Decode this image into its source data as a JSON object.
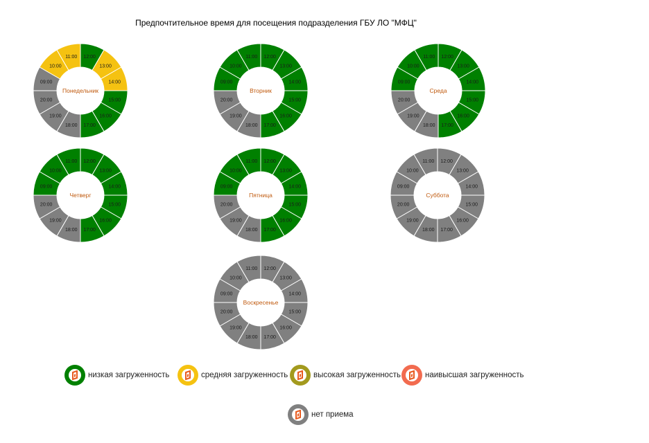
{
  "title": "Предпочтительное время для посещения подразделения ГБУ ЛО \"МФЦ\"",
  "colors": {
    "low": "#008000",
    "medium": "#F5C211",
    "high": "#A39A1E",
    "highest": "#F26B4F",
    "closed": "#808080",
    "day_label": "#C05A0E"
  },
  "chart_data": [
    {
      "type": "donut",
      "day": "Понедельник",
      "hours": [
        "12:00",
        "13:00",
        "14:00",
        "15:00",
        "16:00",
        "17:00",
        "18:00",
        "19:00",
        "20:00",
        "09:00",
        "10:00",
        "11:00"
      ],
      "status": [
        "low",
        "medium",
        "medium",
        "low",
        "low",
        "low",
        "closed",
        "closed",
        "closed",
        "closed",
        "medium",
        "medium"
      ]
    },
    {
      "type": "donut",
      "day": "Вторник",
      "hours": [
        "12:00",
        "13:00",
        "14:00",
        "15:00",
        "16:00",
        "17:00",
        "18:00",
        "19:00",
        "20:00",
        "09:00",
        "10:00",
        "11:00"
      ],
      "status": [
        "low",
        "low",
        "low",
        "low",
        "low",
        "low",
        "closed",
        "closed",
        "closed",
        "low",
        "low",
        "low"
      ]
    },
    {
      "type": "donut",
      "day": "Среда",
      "hours": [
        "12:00",
        "13:00",
        "14:00",
        "15:00",
        "16:00",
        "17:00",
        "18:00",
        "19:00",
        "20:00",
        "09:00",
        "10:00",
        "11:00"
      ],
      "status": [
        "low",
        "low",
        "low",
        "low",
        "low",
        "low",
        "closed",
        "closed",
        "closed",
        "low",
        "low",
        "low"
      ]
    },
    {
      "type": "donut",
      "day": "Четверг",
      "hours": [
        "12:00",
        "13:00",
        "14:00",
        "15:00",
        "16:00",
        "17:00",
        "18:00",
        "19:00",
        "20:00",
        "09:00",
        "10:00",
        "11:00"
      ],
      "status": [
        "low",
        "low",
        "low",
        "low",
        "low",
        "low",
        "closed",
        "closed",
        "closed",
        "low",
        "low",
        "low"
      ]
    },
    {
      "type": "donut",
      "day": "Пятница",
      "hours": [
        "12:00",
        "13:00",
        "14:00",
        "15:00",
        "16:00",
        "17:00",
        "18:00",
        "19:00",
        "20:00",
        "09:00",
        "10:00",
        "11:00"
      ],
      "status": [
        "low",
        "low",
        "low",
        "low",
        "low",
        "low",
        "closed",
        "closed",
        "closed",
        "low",
        "low",
        "low"
      ]
    },
    {
      "type": "donut",
      "day": "Суббота",
      "hours": [
        "12:00",
        "13:00",
        "14:00",
        "15:00",
        "16:00",
        "17:00",
        "18:00",
        "19:00",
        "20:00",
        "09:00",
        "10:00",
        "11:00"
      ],
      "status": [
        "closed",
        "closed",
        "closed",
        "closed",
        "closed",
        "closed",
        "closed",
        "closed",
        "closed",
        "closed",
        "closed",
        "closed"
      ]
    },
    {
      "type": "donut",
      "day": "Воскресенье",
      "hours": [
        "12:00",
        "13:00",
        "14:00",
        "15:00",
        "16:00",
        "17:00",
        "18:00",
        "19:00",
        "20:00",
        "09:00",
        "10:00",
        "11:00"
      ],
      "status": [
        "closed",
        "closed",
        "closed",
        "closed",
        "closed",
        "closed",
        "closed",
        "closed",
        "closed",
        "closed",
        "closed",
        "closed"
      ]
    }
  ],
  "legend": [
    {
      "key": "low",
      "label": "низкая загруженность"
    },
    {
      "key": "medium",
      "label": "средняя загруженность"
    },
    {
      "key": "high",
      "label": "высокая загруженность"
    },
    {
      "key": "highest",
      "label": "наивысшая загруженность"
    },
    {
      "key": "closed",
      "label": "нет приема"
    }
  ]
}
